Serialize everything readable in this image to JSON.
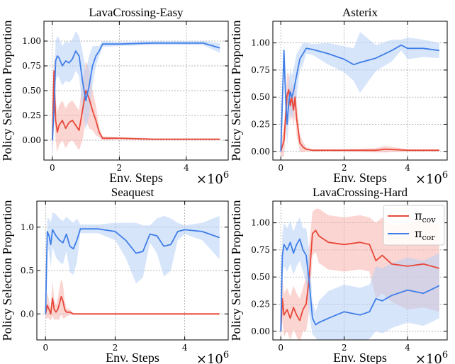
{
  "figure": {
    "multiplier": "×10",
    "multiplier_exp": "6"
  },
  "colors": {
    "cov": "#e8483a",
    "cor": "#3f7ee8",
    "cov_band": "#f6b2ab",
    "cor_band": "#b7cff8",
    "grid": "#9a9a9a"
  },
  "chart_data": [
    {
      "type": "line",
      "title": "LavaCrossing-Easy",
      "xlabel": "Env. Steps",
      "ylabel": "Policy Selection Proportion",
      "xlim": [
        -0.25,
        5.25
      ],
      "ylim": [
        -0.2,
        1.2
      ],
      "xticks": [
        0,
        2,
        4
      ],
      "yticks": [
        0.0,
        0.25,
        0.5,
        0.75,
        1.0
      ],
      "ytick_labels": [
        "0.00",
        "0.25",
        "0.50",
        "0.75",
        "1.00"
      ],
      "grid": true,
      "legend": null,
      "series": [
        {
          "key": "cov",
          "x": [
            0,
            0.05,
            0.1,
            0.15,
            0.2,
            0.3,
            0.4,
            0.5,
            0.6,
            0.7,
            0.8,
            0.9,
            1.0,
            1.1,
            1.2,
            1.3,
            1.4,
            1.5,
            2.0,
            3.0,
            4.0,
            5.0
          ],
          "y": [
            0.0,
            0.7,
            0.2,
            0.08,
            0.15,
            0.2,
            0.12,
            0.18,
            0.2,
            0.15,
            0.1,
            0.3,
            0.5,
            0.42,
            0.3,
            0.2,
            0.08,
            0.02,
            0.02,
            0.01,
            0.01,
            0.01
          ],
          "band": [
            0.15,
            0.2,
            0.2,
            0.2,
            0.2,
            0.2,
            0.2,
            0.2,
            0.2,
            0.2,
            0.2,
            0.3,
            0.3,
            0.3,
            0.2,
            0.15,
            0.05,
            0.02,
            0.01,
            0.01,
            0.01,
            0.01
          ]
        },
        {
          "key": "cor",
          "x": [
            0,
            0.05,
            0.1,
            0.15,
            0.2,
            0.3,
            0.4,
            0.5,
            0.6,
            0.7,
            0.8,
            0.9,
            1.0,
            1.1,
            1.2,
            1.3,
            1.4,
            1.5,
            2.0,
            3.0,
            4.0,
            4.5,
            5.0
          ],
          "y": [
            0.0,
            0.3,
            0.8,
            0.85,
            0.83,
            0.75,
            0.8,
            0.78,
            0.82,
            0.9,
            0.85,
            0.6,
            0.4,
            0.55,
            0.75,
            0.85,
            0.9,
            0.97,
            0.97,
            0.98,
            0.98,
            0.98,
            0.93
          ],
          "band": [
            0.15,
            0.25,
            0.2,
            0.2,
            0.2,
            0.2,
            0.2,
            0.2,
            0.2,
            0.2,
            0.2,
            0.3,
            0.3,
            0.3,
            0.2,
            0.1,
            0.05,
            0.03,
            0.02,
            0.02,
            0.02,
            0.02,
            0.05
          ]
        }
      ]
    },
    {
      "type": "line",
      "title": "Asterix",
      "xlabel": "Env. Steps",
      "ylabel": "Policy Selection Proportion",
      "xlim": [
        -0.25,
        5.25
      ],
      "ylim": [
        -0.08,
        1.2
      ],
      "xticks": [
        0,
        2,
        4
      ],
      "yticks": [
        0.0,
        0.25,
        0.5,
        0.75,
        1.0
      ],
      "ytick_labels": [
        "0.00",
        "0.25",
        "0.50",
        "0.75",
        "1.00"
      ],
      "grid": true,
      "legend": null,
      "series": [
        {
          "key": "cov",
          "x": [
            0,
            0.1,
            0.2,
            0.25,
            0.3,
            0.35,
            0.4,
            0.45,
            0.5,
            0.55,
            0.6,
            0.7,
            0.8,
            1.0,
            2.0,
            3.0,
            3.3,
            4.0,
            5.0
          ],
          "y": [
            0.0,
            0.1,
            0.52,
            0.57,
            0.42,
            0.5,
            0.38,
            0.5,
            0.3,
            0.2,
            0.08,
            0.04,
            0.02,
            0.01,
            0.01,
            0.01,
            0.02,
            0.01,
            0.01
          ],
          "band": [
            0.05,
            0.15,
            0.2,
            0.15,
            0.15,
            0.15,
            0.15,
            0.15,
            0.15,
            0.12,
            0.08,
            0.05,
            0.02,
            0.01,
            0.01,
            0.02,
            0.03,
            0.01,
            0.01
          ]
        },
        {
          "key": "cor",
          "x": [
            0,
            0.1,
            0.15,
            0.2,
            0.25,
            0.3,
            0.35,
            0.4,
            0.5,
            0.6,
            0.7,
            0.8,
            1.0,
            1.5,
            2.0,
            2.3,
            2.5,
            3.0,
            3.5,
            3.8,
            4.0,
            4.5,
            5.0
          ],
          "y": [
            0.0,
            0.93,
            0.5,
            0.25,
            0.45,
            0.55,
            0.5,
            0.55,
            0.7,
            0.85,
            0.9,
            0.95,
            0.94,
            0.9,
            0.85,
            0.8,
            0.82,
            0.86,
            0.93,
            0.98,
            0.95,
            0.95,
            0.93
          ],
          "band": [
            0.05,
            0.1,
            0.2,
            0.2,
            0.2,
            0.2,
            0.2,
            0.2,
            0.2,
            0.1,
            0.1,
            0.05,
            0.05,
            0.1,
            0.12,
            0.15,
            0.28,
            0.12,
            0.1,
            0.05,
            0.1,
            0.08,
            0.07
          ]
        }
      ]
    },
    {
      "type": "line",
      "title": "Seaquest",
      "xlabel": "Env. Steps",
      "ylabel": "Policy Selection Proportion",
      "xlim": [
        -0.25,
        5.25
      ],
      "ylim": [
        -0.3,
        1.3
      ],
      "xticks": [
        0,
        2,
        4
      ],
      "yticks": [
        0.0,
        0.5,
        1.0
      ],
      "ytick_labels": [
        "0.0",
        "0.5",
        "1.0"
      ],
      "grid": true,
      "legend": null,
      "series": [
        {
          "key": "cov",
          "x": [
            0,
            0.05,
            0.1,
            0.15,
            0.2,
            0.25,
            0.3,
            0.35,
            0.4,
            0.45,
            0.5,
            0.55,
            0.6,
            0.7,
            0.8,
            1.0,
            2.0,
            3.0,
            4.0,
            5.0
          ],
          "y": [
            0.0,
            0.1,
            0.05,
            0.0,
            0.18,
            0.05,
            0.02,
            0.05,
            0.12,
            0.2,
            0.15,
            0.05,
            0.02,
            0.02,
            0.0,
            0.0,
            0.0,
            0.0,
            0.0,
            0.0
          ],
          "band": [
            0.05,
            0.15,
            0.1,
            0.08,
            0.2,
            0.12,
            0.08,
            0.12,
            0.18,
            0.2,
            0.2,
            0.1,
            0.05,
            0.03,
            0.01,
            0.01,
            0.01,
            0.01,
            0.01,
            0.01
          ]
        },
        {
          "key": "cor",
          "x": [
            0,
            0.05,
            0.1,
            0.15,
            0.2,
            0.3,
            0.4,
            0.5,
            0.6,
            0.7,
            0.8,
            0.9,
            1.0,
            1.2,
            1.5,
            2.0,
            2.3,
            2.6,
            2.8,
            3.0,
            3.2,
            3.4,
            3.6,
            3.8,
            4.0,
            4.5,
            5.0
          ],
          "y": [
            0.0,
            0.95,
            0.9,
            0.8,
            0.97,
            0.9,
            0.85,
            0.82,
            0.92,
            0.78,
            0.75,
            0.85,
            0.98,
            0.98,
            0.98,
            0.95,
            0.85,
            0.7,
            0.72,
            0.92,
            0.9,
            0.78,
            0.8,
            0.95,
            0.97,
            0.95,
            0.88
          ],
          "band": [
            0.1,
            0.15,
            0.2,
            0.25,
            0.2,
            0.25,
            0.25,
            0.25,
            0.2,
            0.3,
            0.3,
            0.25,
            0.05,
            0.05,
            0.05,
            0.1,
            0.2,
            0.35,
            0.3,
            0.1,
            0.2,
            0.35,
            0.3,
            0.1,
            0.05,
            0.1,
            0.25
          ]
        }
      ]
    },
    {
      "type": "line",
      "title": "LavaCrossing-Hard",
      "xlabel": "Env. Steps",
      "ylabel": "Policy Selection Proportion",
      "xlim": [
        -0.25,
        5.25
      ],
      "ylim": [
        -0.08,
        1.2
      ],
      "xticks": [
        0,
        2,
        4
      ],
      "yticks": [
        0.0,
        0.25,
        0.5,
        0.75,
        1.0
      ],
      "ytick_labels": [
        "0.00",
        "0.25",
        "0.50",
        "0.75",
        "1.00"
      ],
      "grid": true,
      "legend": "top-right",
      "series": [
        {
          "key": "cov",
          "name": "π",
          "name_sub": "cov",
          "x": [
            0,
            0.05,
            0.1,
            0.2,
            0.3,
            0.4,
            0.5,
            0.6,
            0.7,
            0.8,
            0.9,
            1.0,
            1.1,
            1.2,
            1.5,
            2.0,
            2.5,
            2.8,
            3.0,
            3.2,
            3.5,
            4.0,
            4.5,
            5.0
          ],
          "y": [
            0.0,
            0.3,
            0.15,
            0.2,
            0.12,
            0.22,
            0.15,
            0.1,
            0.2,
            0.25,
            0.5,
            0.9,
            0.93,
            0.88,
            0.82,
            0.8,
            0.82,
            0.8,
            0.65,
            0.7,
            0.62,
            0.6,
            0.62,
            0.58
          ],
          "band": [
            0.1,
            0.2,
            0.2,
            0.2,
            0.2,
            0.2,
            0.2,
            0.2,
            0.2,
            0.25,
            0.3,
            0.2,
            0.2,
            0.25,
            0.25,
            0.25,
            0.25,
            0.25,
            0.35,
            0.35,
            0.35,
            0.4,
            0.4,
            0.4
          ]
        },
        {
          "key": "cor",
          "name": "π",
          "name_sub": "cor",
          "x": [
            0,
            0.05,
            0.1,
            0.2,
            0.3,
            0.4,
            0.5,
            0.6,
            0.7,
            0.8,
            0.9,
            1.0,
            1.1,
            1.2,
            1.5,
            2.0,
            2.5,
            2.8,
            3.0,
            3.2,
            3.5,
            4.0,
            4.5,
            5.0
          ],
          "y": [
            0.0,
            0.7,
            0.8,
            0.75,
            0.82,
            0.72,
            0.8,
            0.85,
            0.75,
            0.7,
            0.45,
            0.12,
            0.06,
            0.08,
            0.12,
            0.18,
            0.15,
            0.18,
            0.3,
            0.28,
            0.33,
            0.38,
            0.35,
            0.42
          ],
          "band": [
            0.1,
            0.2,
            0.2,
            0.2,
            0.2,
            0.2,
            0.2,
            0.2,
            0.2,
            0.25,
            0.3,
            0.15,
            0.12,
            0.2,
            0.25,
            0.25,
            0.25,
            0.25,
            0.3,
            0.3,
            0.3,
            0.3,
            0.3,
            0.3
          ]
        }
      ]
    }
  ]
}
